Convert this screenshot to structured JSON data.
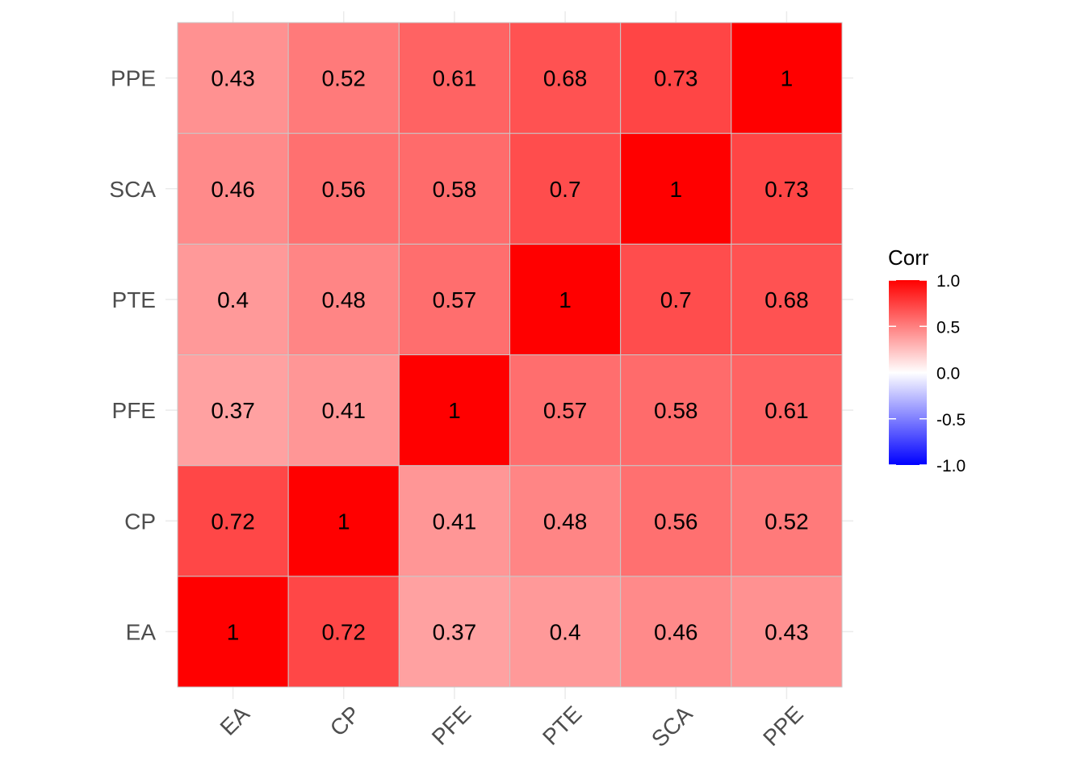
{
  "chart_data": {
    "type": "heatmap",
    "title": "",
    "xlabel": "",
    "ylabel": "",
    "x_categories": [
      "EA",
      "CP",
      "PFE",
      "PTE",
      "SCA",
      "PPE"
    ],
    "y_categories": [
      "EA",
      "CP",
      "PFE",
      "PTE",
      "SCA",
      "PPE"
    ],
    "matrix": [
      [
        1,
        0.72,
        0.37,
        0.4,
        0.46,
        0.43
      ],
      [
        0.72,
        1,
        0.41,
        0.48,
        0.56,
        0.52
      ],
      [
        0.37,
        0.41,
        1,
        0.57,
        0.58,
        0.61
      ],
      [
        0.4,
        0.48,
        0.57,
        1,
        0.7,
        0.68
      ],
      [
        0.46,
        0.56,
        0.58,
        0.7,
        1,
        0.73
      ],
      [
        0.43,
        0.52,
        0.61,
        0.68,
        0.73,
        1
      ]
    ],
    "cell_labels": [
      [
        "1",
        "0.72",
        "0.37",
        "0.4",
        "0.46",
        "0.43"
      ],
      [
        "0.72",
        "1",
        "0.41",
        "0.48",
        "0.56",
        "0.52"
      ],
      [
        "0.37",
        "0.41",
        "1",
        "0.57",
        "0.58",
        "0.61"
      ],
      [
        "0.4",
        "0.48",
        "0.57",
        "1",
        "0.7",
        "0.68"
      ],
      [
        "0.46",
        "0.56",
        "0.58",
        "0.7",
        "1",
        "0.73"
      ],
      [
        "0.43",
        "0.52",
        "0.61",
        "0.68",
        "0.73",
        "1"
      ]
    ],
    "legend": {
      "title": "Corr",
      "range": [
        -1,
        1
      ],
      "breaks": [
        1,
        0.5,
        0,
        -0.5,
        -1
      ],
      "break_labels": [
        "1.0",
        "0.5",
        "0.0",
        "-0.5",
        "-1.0"
      ],
      "placement": "right",
      "colors": {
        "low": "#0000ff",
        "mid": "#ffffff",
        "high": "#ff0000"
      }
    },
    "x_tick_rotation_deg": 45,
    "grid": true
  }
}
